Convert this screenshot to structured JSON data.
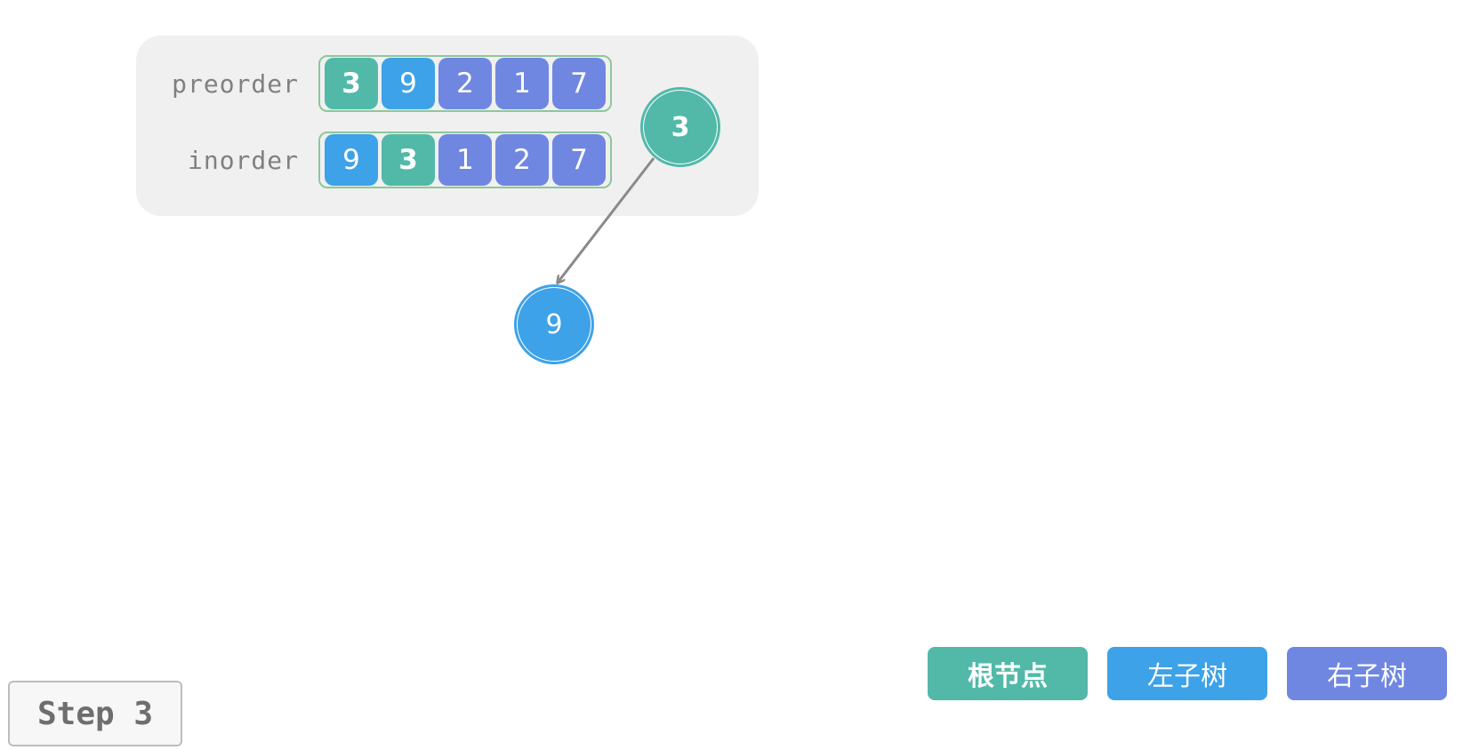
{
  "arrays": {
    "preorder": {
      "label": "preorder",
      "cells": [
        {
          "value": "3",
          "role": "root"
        },
        {
          "value": "9",
          "role": "left"
        },
        {
          "value": "2",
          "role": "right"
        },
        {
          "value": "1",
          "role": "right"
        },
        {
          "value": "7",
          "role": "right"
        }
      ]
    },
    "inorder": {
      "label": "inorder",
      "cells": [
        {
          "value": "9",
          "role": "left"
        },
        {
          "value": "3",
          "role": "root"
        },
        {
          "value": "1",
          "role": "right"
        },
        {
          "value": "2",
          "role": "right"
        },
        {
          "value": "7",
          "role": "right"
        }
      ]
    }
  },
  "tree": {
    "root": {
      "value": "3",
      "role": "root"
    },
    "left_child": {
      "value": "9",
      "role": "left"
    }
  },
  "legend": [
    {
      "label": "根节点",
      "role": "root"
    },
    {
      "label": "左子树",
      "role": "left"
    },
    {
      "label": "右子树",
      "role": "right"
    }
  ],
  "step": {
    "label": "Step 3"
  },
  "colors": {
    "root": "#52b9a9",
    "left": "#3da2e8",
    "right": "#6f87e0",
    "panel_bg": "#f0f0f0",
    "array_border": "#8cc79a",
    "edge": "#8a8a8a"
  }
}
